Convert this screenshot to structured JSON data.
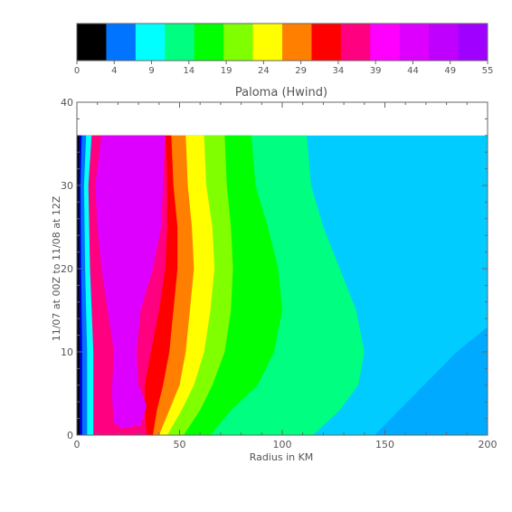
{
  "chart_data": {
    "type": "heatmap",
    "title": "Paloma (Hwind)",
    "xlabel": "Radius in KM",
    "ylabel": "11/07 at 00Z to 11/08 at 12Z",
    "xlim": [
      0,
      200
    ],
    "ylim": [
      0,
      40
    ],
    "x_ticks": [
      "0",
      "50",
      "100",
      "150",
      "200"
    ],
    "y_ticks": [
      "0",
      "10",
      "20",
      "30",
      "40"
    ],
    "data_y_max": 36,
    "grid": false,
    "colorbar": {
      "levels": [
        0,
        2,
        4,
        6.5,
        9,
        11.5,
        14,
        16.5,
        19,
        21.5,
        24,
        26.5,
        29,
        31.5,
        34,
        36.5,
        39,
        41.5,
        44,
        46.5,
        49,
        51.5,
        55
      ],
      "tick_labels": [
        "0",
        "4",
        "9",
        "14",
        "19",
        "24",
        "29",
        "34",
        "39",
        "44",
        "49",
        "55"
      ],
      "colors": [
        "#000000",
        "#0073ff",
        "#00ffff",
        "#00ff80",
        "#00ff00",
        "#80ff00",
        "#ffff00",
        "#ff8000",
        "#ff0000",
        "#ff0080",
        "#ff00ff",
        "#dd00ff",
        "#c000ff",
        "#a000ff"
      ]
    },
    "contours": [
      {
        "value": 9,
        "color": "#00ffff",
        "x": [
          4,
          4,
          4,
          4,
          4,
          4,
          4,
          4,
          4
        ]
      },
      {
        "value": 14,
        "color": "#00ff80",
        "x": [
          115,
          128,
          137,
          140,
          136,
          128,
          120,
          114,
          112
        ]
      },
      {
        "value": 19,
        "color": "#00ff00",
        "x": [
          65,
          75,
          88,
          96,
          100,
          98,
          93,
          87,
          85
        ]
      },
      {
        "value": 24,
        "color": "#80ff00",
        "x": [
          52,
          60,
          66,
          72,
          75,
          76,
          75,
          73,
          72
        ]
      },
      {
        "value": 29,
        "color": "#ffff00",
        "x": [
          44,
          51,
          57,
          62,
          65,
          67,
          66,
          63,
          62
        ]
      },
      {
        "value": 34,
        "color": "#ff8000",
        "x": [
          40,
          45,
          50,
          53,
          55,
          57,
          56,
          54,
          53
        ]
      },
      {
        "value": 39,
        "color": "#ff0000",
        "x": [
          37,
          39,
          42,
          45,
          47,
          49,
          49,
          47,
          46
        ]
      },
      {
        "value": 44,
        "color": "#ff0080",
        "x": [
          34,
          33,
          33,
          36,
          40,
          43,
          44,
          44,
          43
        ]
      }
    ],
    "contour_y": [
      0,
      3,
      6,
      10,
      15,
      20,
      25,
      30,
      36
    ],
    "eyewall": {
      "value": 49,
      "color": "#dd00ff"
    }
  }
}
